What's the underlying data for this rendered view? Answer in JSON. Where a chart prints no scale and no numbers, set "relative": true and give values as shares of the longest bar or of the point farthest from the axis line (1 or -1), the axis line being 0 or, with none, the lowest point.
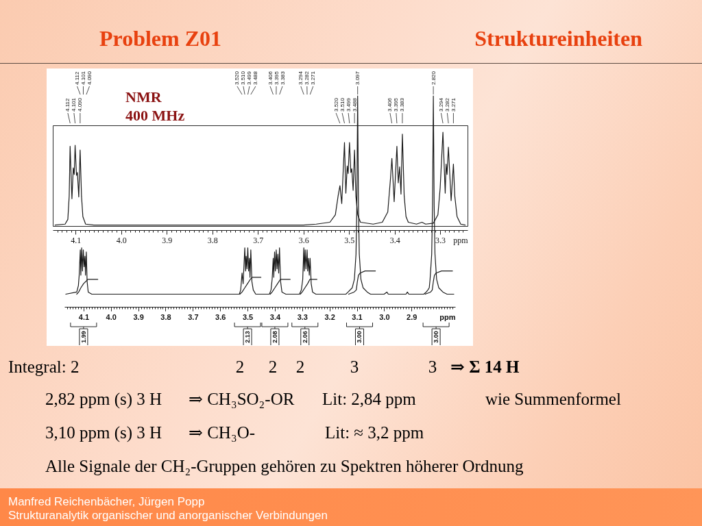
{
  "chart_data": [
    {
      "type": "line",
      "title": "Problem Z01",
      "subtitle": "Struktureinheiten",
      "xlabel": "ppm",
      "relative": true,
      "color": "#1a1a1a",
      "x": [
        4.145,
        4.123,
        4.117,
        4.114,
        4.112,
        4.108,
        4.105,
        4.103,
        4.101,
        4.098,
        4.096,
        4.093,
        4.09,
        4.087,
        4.084,
        4.078,
        4.06,
        3.9,
        3.75,
        3.6,
        3.572,
        3.542,
        3.53,
        3.524,
        3.52,
        3.516,
        3.51,
        3.507,
        3.504,
        3.502,
        3.499,
        3.496,
        3.494,
        3.491,
        3.488,
        3.485,
        3.481,
        3.475,
        3.447,
        3.427,
        3.415,
        3.409,
        3.406,
        3.401,
        3.395,
        3.392,
        3.389,
        3.386,
        3.383,
        3.379,
        3.375,
        3.37,
        3.352,
        3.34,
        3.332,
        3.315,
        3.305,
        3.3,
        3.294,
        3.289,
        3.287,
        3.285,
        3.282,
        3.276,
        3.271,
        3.268,
        3.263,
        3.255,
        3.245
      ],
      "values": [
        0.01,
        0.02,
        0.07,
        0.32,
        0.85,
        0.29,
        0.62,
        0.55,
        0.86,
        0.54,
        0.57,
        0.31,
        0.81,
        0.32,
        0.1,
        0.02,
        0.01,
        0.01,
        0.01,
        0.01,
        0.02,
        0.04,
        0.12,
        0.32,
        0.43,
        0.24,
        0.89,
        0.35,
        0.64,
        0.56,
        0.89,
        0.57,
        0.61,
        0.38,
        0.81,
        0.32,
        0.12,
        0.04,
        0.02,
        0.04,
        0.15,
        0.51,
        0.72,
        0.26,
        0.85,
        0.46,
        0.63,
        0.34,
        0.98,
        0.32,
        0.1,
        0.04,
        0.02,
        0.04,
        0.02,
        0.03,
        0.12,
        0.41,
        1,
        0.35,
        0.66,
        0.55,
        0.84,
        0.27,
        0.66,
        0.32,
        0.1,
        0.02,
        0.01
      ],
      "xlim": [
        4.15,
        3.24
      ],
      "xticks": [
        {
          "value": 4.14,
          "label": null
        },
        {
          "value": 4.13,
          "label": null
        },
        {
          "value": 4.12,
          "label": null
        },
        {
          "value": 4.11,
          "label": null
        },
        4.1,
        {
          "value": 4.09,
          "label": null
        },
        {
          "value": 4.08,
          "label": null
        },
        {
          "value": 4.07,
          "label": null
        },
        {
          "value": 4.06,
          "label": null
        },
        {
          "value": 4.05,
          "label": null
        },
        {
          "value": 4.04,
          "label": null
        },
        {
          "value": 4.03,
          "label": null
        },
        {
          "value": 4.02,
          "label": null
        },
        {
          "value": 4.01,
          "label": null
        },
        {
          "value": 4,
          "label": "4.0"
        },
        {
          "value": 3.99,
          "label": null
        },
        {
          "value": 3.98,
          "label": null
        },
        {
          "value": 3.97,
          "label": null
        },
        {
          "value": 3.96,
          "label": null
        },
        {
          "value": 3.95,
          "label": null
        },
        {
          "value": 3.94,
          "label": null
        },
        {
          "value": 3.93,
          "label": null
        },
        {
          "value": 3.92,
          "label": null
        },
        {
          "value": 3.91,
          "label": null
        },
        3.9,
        {
          "value": 3.89,
          "label": null
        },
        {
          "value": 3.88,
          "label": null
        },
        {
          "value": 3.87,
          "label": null
        },
        {
          "value": 3.86,
          "label": null
        },
        {
          "value": 3.85,
          "label": null
        },
        {
          "value": 3.84,
          "label": null
        },
        {
          "value": 3.83,
          "label": null
        },
        {
          "value": 3.82,
          "label": null
        },
        {
          "value": 3.81,
          "label": null
        },
        3.8,
        {
          "value": 3.79,
          "label": null
        },
        {
          "value": 3.78,
          "label": null
        },
        {
          "value": 3.77,
          "label": null
        },
        {
          "value": 3.76,
          "label": null
        },
        {
          "value": 3.75,
          "label": null
        },
        {
          "value": 3.74,
          "label": null
        },
        {
          "value": 3.73,
          "label": null
        },
        {
          "value": 3.72,
          "label": null
        },
        {
          "value": 3.71,
          "label": null
        },
        3.7,
        {
          "value": 3.69,
          "label": null
        },
        {
          "value": 3.68,
          "label": null
        },
        {
          "value": 3.67,
          "label": null
        },
        {
          "value": 3.66,
          "label": null
        },
        {
          "value": 3.65,
          "label": null
        },
        {
          "value": 3.64,
          "label": null
        },
        {
          "value": 3.63,
          "label": null
        },
        {
          "value": 3.62,
          "label": null
        },
        {
          "value": 3.61,
          "label": null
        },
        3.6,
        {
          "value": 3.59,
          "label": null
        },
        {
          "value": 3.58,
          "label": null
        },
        {
          "value": 3.57,
          "label": null
        },
        {
          "value": 3.56,
          "label": null
        },
        {
          "value": 3.55,
          "label": null
        },
        {
          "value": 3.54,
          "label": null
        },
        {
          "value": 3.53,
          "label": null
        },
        {
          "value": 3.52,
          "label": null
        },
        {
          "value": 3.51,
          "label": null
        },
        3.5,
        {
          "value": 3.49,
          "label": null
        },
        {
          "value": 3.48,
          "label": null
        },
        {
          "value": 3.47,
          "label": null
        },
        {
          "value": 3.46,
          "label": null
        },
        {
          "value": 3.45,
          "label": null
        },
        {
          "value": 3.44,
          "label": null
        },
        {
          "value": 3.43,
          "label": null
        },
        {
          "value": 3.42,
          "label": null
        },
        {
          "value": 3.41,
          "label": null
        },
        3.4,
        {
          "value": 3.39,
          "label": null
        },
        {
          "value": 3.38,
          "label": null
        },
        {
          "value": 3.37,
          "label": null
        },
        {
          "value": 3.36,
          "label": null
        },
        {
          "value": 3.35,
          "label": null
        },
        {
          "value": 3.34,
          "label": null
        },
        {
          "value": 3.33,
          "label": null
        },
        {
          "value": 3.32,
          "label": null
        },
        {
          "value": 3.31,
          "label": null
        },
        3.3,
        {
          "value": 3.29,
          "label": null
        },
        {
          "value": 3.28,
          "label": null
        },
        {
          "value": 3.27,
          "label": null
        },
        {
          "value": 3.26,
          "label": null
        },
        {
          "value": 3.25,
          "label": null
        }
      ],
      "annotations": [
        "NMR",
        "400 MHz",
        "4.112",
        "4.101",
        "4.090",
        "3.520",
        "3.510",
        "3.499",
        "3.488",
        "3.406",
        "3.395",
        "3.383",
        "3.294",
        "3.282",
        "3.271"
      ]
    },
    {
      "type": "line",
      "xlabel": "ppm",
      "relative": true,
      "series": [
        {
          "color": "#1a1a1a",
          "x": [
            4.165,
            4.125,
            4.119,
            4.116,
            4.112,
            4.11,
            4.107,
            4.104,
            4.101,
            4.098,
            4.095,
            4.093,
            4.09,
            4.087,
            4.083,
            4.07,
            3.9,
            3.7,
            3.53,
            3.525,
            3.52,
            3.516,
            3.51,
            3.507,
            3.505,
            3.502,
            3.499,
            3.496,
            3.493,
            3.491,
            3.488,
            3.484,
            3.479,
            3.47,
            3.42,
            3.414,
            3.41,
            3.406,
            3.404,
            3.401,
            3.398,
            3.395,
            3.392,
            3.389,
            3.386,
            3.383,
            3.379,
            3.374,
            3.36,
            3.31,
            3.303,
            3.298,
            3.294,
            3.292,
            3.289,
            3.286,
            3.282,
            3.28,
            3.277,
            3.274,
            3.271,
            3.267,
            3.262,
            3.25,
            3.14,
            3.132,
            3.117,
            3.109,
            3.103,
            3.1,
            3.097,
            3.094,
            3.091,
            3.085,
            3.077,
            3.062,
            3.05,
            3,
            2.99,
            2.985,
            2.92,
            2.915,
            2.91,
            2.855,
            2.846,
            2.84,
            2.835,
            2.832,
            2.826,
            2.823,
            2.82,
            2.817,
            2.814,
            2.808,
            2.8,
            2.785,
            2.77,
            2.745
          ],
          "values": [
            0.06,
            0.07,
            0.1,
            0.15,
            0.27,
            0.15,
            0.28,
            0.17,
            0.27,
            0.19,
            0.24,
            0.15,
            0.26,
            0.12,
            0.07,
            0.06,
            0.06,
            0.06,
            0.06,
            0.08,
            0.16,
            0.11,
            0.28,
            0.17,
            0.24,
            0.18,
            0.28,
            0.17,
            0.23,
            0.14,
            0.27,
            0.12,
            0.08,
            0.06,
            0.06,
            0.08,
            0.13,
            0.23,
            0.14,
            0.26,
            0.17,
            0.27,
            0.18,
            0.25,
            0.16,
            0.28,
            0.12,
            0.07,
            0.06,
            0.06,
            0.08,
            0.13,
            0.28,
            0.17,
            0.27,
            0.18,
            0.27,
            0.17,
            0.23,
            0.15,
            0.23,
            0.11,
            0.07,
            0.06,
            0.06,
            0.07,
            0.09,
            0.13,
            0.25,
            0.48,
            1,
            0.48,
            0.25,
            0.13,
            0.09,
            0.07,
            0.06,
            0.06,
            0.07,
            0.06,
            0.06,
            0.07,
            0.06,
            0.06,
            0.07,
            0.08,
            0.09,
            0.13,
            0.25,
            0.48,
            1,
            0.48,
            0.25,
            0.13,
            0.09,
            0.07,
            0.06,
            0.06
          ]
        },
        {
          "color": "#1a1a1a",
          "x": [
            4.125,
            4.118,
            4.11,
            4.1,
            4.092,
            4.085,
            4.048,
            4.04,
            3.528,
            3.52,
            3.51,
            3.5,
            3.49,
            3.483,
            3.451,
            3.44,
            3.417,
            3.41,
            3.4,
            3.39,
            3.38,
            3.376,
            3.344,
            3.33,
            3.307,
            3.3,
            3.29,
            3.28,
            3.272,
            3.267,
            3.246,
            3.2,
            3.13,
            3.11,
            3.102,
            3.098,
            3.094,
            3.088,
            3.07,
            3.032,
            3.01,
            2.85,
            2.83,
            2.824,
            2.82,
            2.816,
            2.81,
            2.79,
            2.75
          ],
          "values": [
            0.06,
            0.07,
            0.09,
            0.11,
            0.12,
            0.13,
            0.13,
            null,
            0.06,
            0.07,
            0.09,
            0.11,
            0.13,
            0.14,
            0.14,
            null,
            0.06,
            0.07,
            0.09,
            0.11,
            0.13,
            0.13,
            0.13,
            null,
            0.06,
            0.07,
            0.09,
            0.11,
            0.13,
            0.13,
            0.13,
            null,
            0.06,
            0.07,
            0.08,
            0.12,
            0.15,
            0.16,
            0.17,
            0.17,
            null,
            0.06,
            0.07,
            0.08,
            0.12,
            0.15,
            0.16,
            0.17,
            0.17
          ]
        }
      ],
      "xlim": [
        4.17,
        2.74
      ],
      "xticks": [
        {
          "value": 4.16,
          "label": null
        },
        {
          "value": 4.15,
          "label": null
        },
        {
          "value": 4.14,
          "label": null
        },
        {
          "value": 4.13,
          "label": null
        },
        {
          "value": 4.12,
          "label": null
        },
        {
          "value": 4.11,
          "label": null
        },
        4.1,
        {
          "value": 4.09,
          "label": null
        },
        {
          "value": 4.08,
          "label": null
        },
        {
          "value": 4.07,
          "label": null
        },
        {
          "value": 4.06,
          "label": null
        },
        {
          "value": 4.05,
          "label": null
        },
        {
          "value": 4.04,
          "label": null
        },
        {
          "value": 4.03,
          "label": null
        },
        {
          "value": 4.02,
          "label": null
        },
        {
          "value": 4.01,
          "label": null
        },
        {
          "value": 4,
          "label": "4.0"
        },
        {
          "value": 3.99,
          "label": null
        },
        {
          "value": 3.98,
          "label": null
        },
        {
          "value": 3.97,
          "label": null
        },
        {
          "value": 3.96,
          "label": null
        },
        {
          "value": 3.95,
          "label": null
        },
        {
          "value": 3.94,
          "label": null
        },
        {
          "value": 3.93,
          "label": null
        },
        {
          "value": 3.92,
          "label": null
        },
        {
          "value": 3.91,
          "label": null
        },
        3.9,
        {
          "value": 3.89,
          "label": null
        },
        {
          "value": 3.88,
          "label": null
        },
        {
          "value": 3.87,
          "label": null
        },
        {
          "value": 3.86,
          "label": null
        },
        {
          "value": 3.85,
          "label": null
        },
        {
          "value": 3.84,
          "label": null
        },
        {
          "value": 3.83,
          "label": null
        },
        {
          "value": 3.82,
          "label": null
        },
        {
          "value": 3.81,
          "label": null
        },
        3.8,
        {
          "value": 3.79,
          "label": null
        },
        {
          "value": 3.78,
          "label": null
        },
        {
          "value": 3.77,
          "label": null
        },
        {
          "value": 3.76,
          "label": null
        },
        {
          "value": 3.75,
          "label": null
        },
        {
          "value": 3.74,
          "label": null
        },
        {
          "value": 3.73,
          "label": null
        },
        {
          "value": 3.72,
          "label": null
        },
        {
          "value": 3.71,
          "label": null
        },
        3.7,
        {
          "value": 3.69,
          "label": null
        },
        {
          "value": 3.68,
          "label": null
        },
        {
          "value": 3.67,
          "label": null
        },
        {
          "value": 3.66,
          "label": null
        },
        {
          "value": 3.65,
          "label": null
        },
        {
          "value": 3.64,
          "label": null
        },
        {
          "value": 3.63,
          "label": null
        },
        {
          "value": 3.62,
          "label": null
        },
        {
          "value": 3.61,
          "label": null
        },
        3.6,
        {
          "value": 3.59,
          "label": null
        },
        {
          "value": 3.58,
          "label": null
        },
        {
          "value": 3.57,
          "label": null
        },
        {
          "value": 3.56,
          "label": null
        },
        {
          "value": 3.55,
          "label": null
        },
        {
          "value": 3.54,
          "label": null
        },
        {
          "value": 3.53,
          "label": null
        },
        {
          "value": 3.52,
          "label": null
        },
        {
          "value": 3.51,
          "label": null
        },
        3.5,
        {
          "value": 3.49,
          "label": null
        },
        {
          "value": 3.48,
          "label": null
        },
        {
          "value": 3.47,
          "label": null
        },
        {
          "value": 3.46,
          "label": null
        },
        {
          "value": 3.45,
          "label": null
        },
        {
          "value": 3.44,
          "label": null
        },
        {
          "value": 3.43,
          "label": null
        },
        {
          "value": 3.42,
          "label": null
        },
        {
          "value": 3.41,
          "label": null
        },
        3.4,
        {
          "value": 3.39,
          "label": null
        },
        {
          "value": 3.38,
          "label": null
        },
        {
          "value": 3.37,
          "label": null
        },
        {
          "value": 3.36,
          "label": null
        },
        {
          "value": 3.35,
          "label": null
        },
        {
          "value": 3.34,
          "label": null
        },
        {
          "value": 3.33,
          "label": null
        },
        {
          "value": 3.32,
          "label": null
        },
        {
          "value": 3.31,
          "label": null
        },
        3.3,
        {
          "value": 3.29,
          "label": null
        },
        {
          "value": 3.28,
          "label": null
        },
        {
          "value": 3.27,
          "label": null
        },
        {
          "value": 3.26,
          "label": null
        },
        {
          "value": 3.25,
          "label": null
        },
        {
          "value": 3.24,
          "label": null
        },
        {
          "value": 3.23,
          "label": null
        },
        {
          "value": 3.22,
          "label": null
        },
        {
          "value": 3.21,
          "label": null
        },
        3.2,
        {
          "value": 3.19,
          "label": null
        },
        {
          "value": 3.18,
          "label": null
        },
        {
          "value": 3.17,
          "label": null
        },
        {
          "value": 3.16,
          "label": null
        },
        {
          "value": 3.15,
          "label": null
        },
        {
          "value": 3.14,
          "label": null
        },
        {
          "value": 3.13,
          "label": null
        },
        {
          "value": 3.12,
          "label": null
        },
        {
          "value": 3.11,
          "label": null
        },
        3.1,
        {
          "value": 3.09,
          "label": null
        },
        {
          "value": 3.08,
          "label": null
        },
        {
          "value": 3.07,
          "label": null
        },
        {
          "value": 3.06,
          "label": null
        },
        {
          "value": 3.05,
          "label": null
        },
        {
          "value": 3.04,
          "label": null
        },
        {
          "value": 3.03,
          "label": null
        },
        {
          "value": 3.02,
          "label": null
        },
        {
          "value": 3.01,
          "label": null
        },
        {
          "value": 3,
          "label": "3.0"
        },
        {
          "value": 2.99,
          "label": null
        },
        {
          "value": 2.98,
          "label": null
        },
        {
          "value": 2.97,
          "label": null
        },
        {
          "value": 2.96,
          "label": null
        },
        {
          "value": 2.95,
          "label": null
        },
        {
          "value": 2.94,
          "label": null
        },
        {
          "value": 2.93,
          "label": null
        },
        {
          "value": 2.92,
          "label": null
        },
        {
          "value": 2.91,
          "label": null
        },
        2.9,
        {
          "value": 2.89,
          "label": null
        },
        {
          "value": 2.88,
          "label": null
        },
        {
          "value": 2.87,
          "label": null
        },
        {
          "value": 2.86,
          "label": null
        },
        {
          "value": 2.85,
          "label": null
        },
        {
          "value": 2.84,
          "label": null
        },
        {
          "value": 2.83,
          "label": null
        },
        {
          "value": 2.82,
          "label": null
        },
        {
          "value": 2.81,
          "label": null
        },
        {
          "value": 2.8,
          "label": null
        },
        {
          "value": 2.79,
          "label": null
        },
        {
          "value": 2.78,
          "label": null
        },
        {
          "value": 2.77,
          "label": null
        },
        {
          "value": 2.76,
          "label": null
        },
        {
          "value": 2.75,
          "label": null
        }
      ],
      "annotations": [
        "4.112",
        "4.101",
        "4.090",
        "3.520",
        "3.510",
        "3.499",
        "3.488",
        "3.406",
        "3.395",
        "3.383",
        "3.294",
        "3.282",
        "3.271",
        "3.097",
        "2.820",
        {
          "text": "1.99",
          "x": 4.1
        },
        {
          "text": "2.13",
          "x": 3.5
        },
        {
          "text": "2.08",
          "x": 3.4
        },
        {
          "text": "2.06",
          "x": 3.29
        },
        {
          "text": "3.00",
          "x": 3.09
        },
        {
          "text": "3.00",
          "x": 2.81
        },
        "Integral: 2",
        "2",
        "2",
        "2",
        "3",
        "3",
        "⇒ Σ 14 H",
        "2,82 ppm (s) 3 H",
        "⇒ CH₃SO₂-OR",
        "Lit: 2,84 ppm",
        "wie Summenformel",
        "3,10 ppm (s) 3 H",
        "⇒ CH₃O-",
        "Lit: ≈ 3,2 ppm",
        "Alle Signale der CH₂-Gruppen gehören zu Spektren höherer Ordnung",
        "Manfred Reichenbächer, Jürgen Popp",
        "Strukturanalytik organischer und anorganischer Verbindungen"
      ]
    }
  ]
}
